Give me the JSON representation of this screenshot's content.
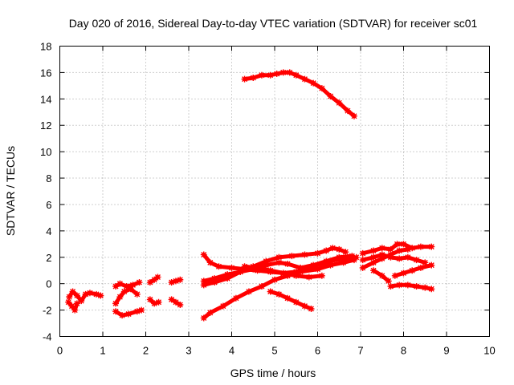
{
  "chart_data": {
    "type": "scatter",
    "title": "Day 020 of 2016, Sidereal Day-to-day VTEC variation (SDTVAR) for receiver sc01",
    "xlabel": "GPS time / hours",
    "ylabel": "SDTVAR / TECUs",
    "xlim": [
      0,
      10
    ],
    "ylim": [
      -4,
      18
    ],
    "xticks": [
      0,
      1,
      2,
      3,
      4,
      5,
      6,
      7,
      8,
      9,
      10
    ],
    "yticks": [
      -4,
      -2,
      0,
      2,
      4,
      6,
      8,
      10,
      12,
      14,
      16,
      18
    ],
    "grid": true,
    "marker": "star",
    "series_color": "#ff0000",
    "series": [
      {
        "name": "trace-1",
        "points": [
          [
            0.22,
            -1.0
          ],
          [
            0.3,
            -0.6
          ],
          [
            0.4,
            -0.9
          ],
          [
            0.5,
            -1.3
          ],
          [
            0.6,
            -0.8
          ],
          [
            0.7,
            -0.7
          ],
          [
            0.85,
            -0.8
          ],
          [
            0.95,
            -0.9
          ]
        ]
      },
      {
        "name": "trace-2",
        "points": [
          [
            0.2,
            -1.4
          ],
          [
            0.28,
            -1.7
          ],
          [
            0.35,
            -2.0
          ],
          [
            0.4,
            -1.5
          ]
        ]
      },
      {
        "name": "trace-3",
        "points": [
          [
            1.3,
            -0.2
          ],
          [
            1.4,
            0.0
          ],
          [
            1.55,
            -0.2
          ],
          [
            1.7,
            -0.1
          ],
          [
            1.85,
            0.1
          ]
        ]
      },
      {
        "name": "trace-4",
        "points": [
          [
            1.3,
            -1.5
          ],
          [
            1.4,
            -1.0
          ],
          [
            1.5,
            -0.6
          ],
          [
            1.65,
            -0.4
          ],
          [
            1.8,
            -0.8
          ]
        ]
      },
      {
        "name": "trace-5",
        "points": [
          [
            1.3,
            -2.1
          ],
          [
            1.45,
            -2.4
          ],
          [
            1.6,
            -2.3
          ],
          [
            1.8,
            -2.1
          ],
          [
            1.9,
            -2.0
          ]
        ]
      },
      {
        "name": "trace-6",
        "points": [
          [
            2.1,
            0.1
          ],
          [
            2.2,
            0.3
          ],
          [
            2.28,
            0.5
          ]
        ]
      },
      {
        "name": "trace-7",
        "points": [
          [
            2.1,
            -1.2
          ],
          [
            2.2,
            -1.5
          ],
          [
            2.3,
            -1.4
          ]
        ]
      },
      {
        "name": "trace-8",
        "points": [
          [
            2.6,
            0.1
          ],
          [
            2.7,
            0.2
          ],
          [
            2.8,
            0.3
          ]
        ]
      },
      {
        "name": "trace-9",
        "points": [
          [
            2.6,
            -1.2
          ],
          [
            2.7,
            -1.4
          ],
          [
            2.8,
            -1.6
          ]
        ]
      },
      {
        "name": "trace-10",
        "points": [
          [
            3.35,
            -2.6
          ],
          [
            3.5,
            -2.2
          ],
          [
            3.8,
            -1.7
          ],
          [
            4.1,
            -1.1
          ],
          [
            4.4,
            -0.6
          ],
          [
            4.7,
            -0.2
          ],
          [
            5.0,
            0.3
          ],
          [
            5.3,
            0.6
          ],
          [
            5.6,
            0.9
          ],
          [
            6.0,
            1.1
          ],
          [
            6.3,
            1.4
          ],
          [
            6.6,
            1.6
          ],
          [
            6.85,
            1.8
          ]
        ]
      },
      {
        "name": "trace-11",
        "points": [
          [
            3.35,
            2.2
          ],
          [
            3.5,
            1.6
          ],
          [
            3.7,
            1.3
          ],
          [
            4.0,
            1.2
          ],
          [
            4.3,
            1.1
          ],
          [
            4.6,
            1.0
          ],
          [
            4.9,
            0.9
          ],
          [
            5.2,
            0.8
          ],
          [
            5.5,
            0.9
          ],
          [
            5.8,
            1.2
          ],
          [
            6.1,
            1.5
          ],
          [
            6.4,
            1.8
          ],
          [
            6.7,
            1.9
          ],
          [
            6.9,
            2.0
          ]
        ]
      },
      {
        "name": "trace-12",
        "points": [
          [
            3.35,
            0.2
          ],
          [
            3.6,
            0.4
          ],
          [
            3.9,
            0.7
          ],
          [
            4.2,
            0.9
          ],
          [
            4.5,
            1.1
          ],
          [
            4.8,
            1.4
          ],
          [
            5.1,
            1.6
          ],
          [
            5.3,
            1.5
          ],
          [
            5.6,
            1.2
          ],
          [
            5.9,
            1.4
          ],
          [
            6.2,
            1.7
          ],
          [
            6.5,
            2.0
          ],
          [
            6.8,
            2.1
          ]
        ]
      },
      {
        "name": "trace-13",
        "points": [
          [
            3.35,
            -0.1
          ],
          [
            3.6,
            0.1
          ],
          [
            3.9,
            0.4
          ],
          [
            4.2,
            0.9
          ],
          [
            4.5,
            1.3
          ],
          [
            4.8,
            1.7
          ],
          [
            5.1,
            2.0
          ],
          [
            5.4,
            2.1
          ],
          [
            5.7,
            2.2
          ],
          [
            6.0,
            2.3
          ],
          [
            6.2,
            2.5
          ],
          [
            6.35,
            2.7
          ],
          [
            6.5,
            2.6
          ],
          [
            6.65,
            2.4
          ]
        ]
      },
      {
        "name": "trace-14",
        "points": [
          [
            4.3,
            1.3
          ],
          [
            4.6,
            1.2
          ],
          [
            4.9,
            1.0
          ],
          [
            5.2,
            0.8
          ],
          [
            5.5,
            0.6
          ],
          [
            5.8,
            0.5
          ],
          [
            6.1,
            0.6
          ]
        ]
      },
      {
        "name": "trace-15",
        "points": [
          [
            4.9,
            -0.6
          ],
          [
            5.1,
            -0.8
          ],
          [
            5.3,
            -1.1
          ],
          [
            5.5,
            -1.4
          ],
          [
            5.7,
            -1.7
          ],
          [
            5.85,
            -1.9
          ]
        ]
      },
      {
        "name": "trace-16",
        "points": [
          [
            4.3,
            15.5
          ],
          [
            4.5,
            15.6
          ],
          [
            4.7,
            15.8
          ],
          [
            4.9,
            15.8
          ],
          [
            5.05,
            15.9
          ],
          [
            5.2,
            16.0
          ],
          [
            5.35,
            16.0
          ],
          [
            5.5,
            15.8
          ],
          [
            5.7,
            15.5
          ],
          [
            5.9,
            15.2
          ],
          [
            6.1,
            14.8
          ],
          [
            6.3,
            14.2
          ],
          [
            6.5,
            13.7
          ],
          [
            6.7,
            13.1
          ],
          [
            6.85,
            12.7
          ]
        ]
      },
      {
        "name": "trace-17",
        "points": [
          [
            7.05,
            2.3
          ],
          [
            7.3,
            2.5
          ],
          [
            7.5,
            2.7
          ],
          [
            7.7,
            2.6
          ],
          [
            7.85,
            3.0
          ],
          [
            8.0,
            3.0
          ],
          [
            8.2,
            2.7
          ],
          [
            8.4,
            2.8
          ],
          [
            8.65,
            2.8
          ]
        ]
      },
      {
        "name": "trace-18",
        "points": [
          [
            7.05,
            1.8
          ],
          [
            7.3,
            2.0
          ],
          [
            7.5,
            2.2
          ],
          [
            7.7,
            2.0
          ],
          [
            7.9,
            1.9
          ],
          [
            8.1,
            2.0
          ],
          [
            8.3,
            1.8
          ],
          [
            8.5,
            1.6
          ]
        ]
      },
      {
        "name": "trace-19",
        "points": [
          [
            7.05,
            1.2
          ],
          [
            7.3,
            1.6
          ],
          [
            7.5,
            1.9
          ],
          [
            7.7,
            2.2
          ],
          [
            7.9,
            2.5
          ],
          [
            8.1,
            2.6
          ]
        ]
      },
      {
        "name": "trace-20",
        "points": [
          [
            7.3,
            1.0
          ],
          [
            7.5,
            0.6
          ],
          [
            7.65,
            0.2
          ]
        ]
      },
      {
        "name": "trace-21",
        "points": [
          [
            7.8,
            0.6
          ],
          [
            8.0,
            0.8
          ],
          [
            8.2,
            1.0
          ],
          [
            8.4,
            1.2
          ],
          [
            8.65,
            1.4
          ]
        ]
      },
      {
        "name": "trace-22",
        "points": [
          [
            7.7,
            -0.2
          ],
          [
            7.9,
            -0.1
          ],
          [
            8.1,
            -0.1
          ],
          [
            8.3,
            -0.2
          ],
          [
            8.5,
            -0.3
          ],
          [
            8.65,
            -0.4
          ]
        ]
      }
    ]
  }
}
